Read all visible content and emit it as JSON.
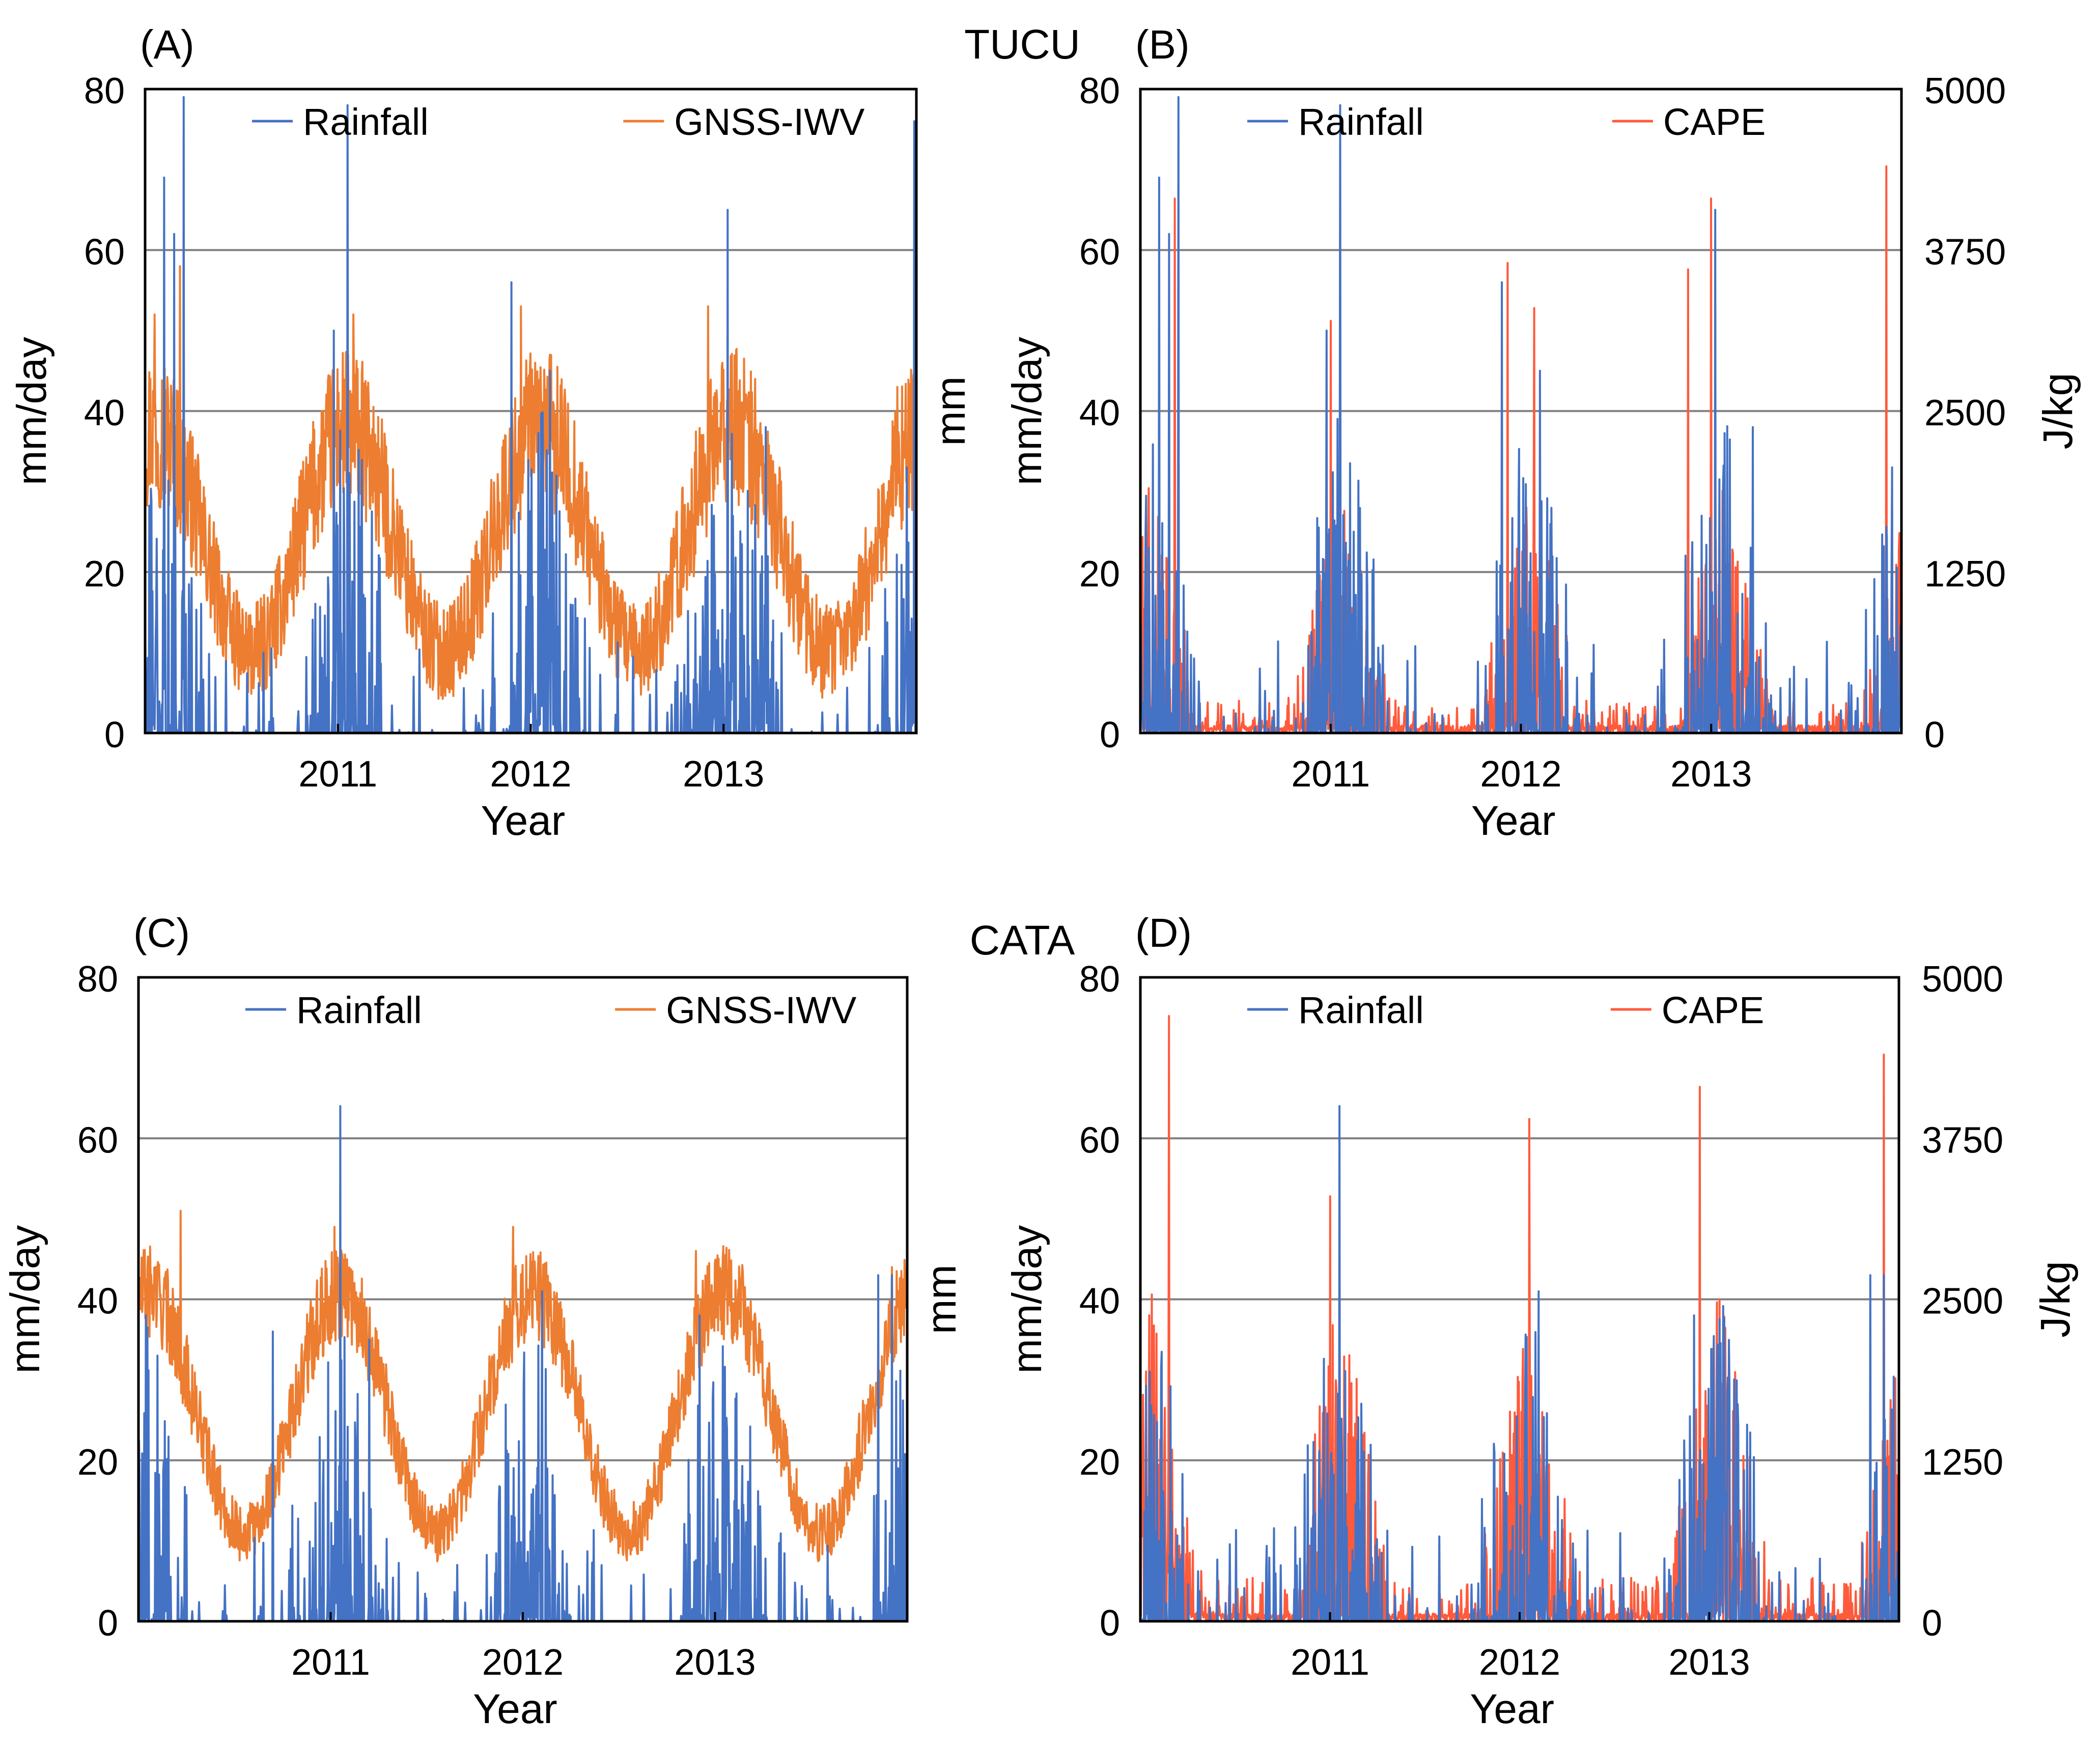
{
  "figure": {
    "station_top": "TUCU",
    "station_bottom": "CATA"
  },
  "colors": {
    "rainfall": "#4472C4",
    "iwv": "#ED7D31",
    "cape": "#FF5A3C",
    "grid": "#808080",
    "axis": "#000000"
  },
  "chart_data": [
    {
      "id": "A",
      "panel_label": "(A)",
      "station": "TUCU",
      "type": "line",
      "xlabel": "Year",
      "ylabel": "mm/day",
      "ylabel_right": "mm",
      "ylim": [
        0,
        80
      ],
      "yticks": [
        "0",
        "20",
        "40",
        "60",
        "80"
      ],
      "xlim": [
        2010.0,
        2014.0
      ],
      "xticks": [
        2011,
        2012,
        2013
      ],
      "xticklabels": [
        "2011",
        "2012",
        "2013"
      ],
      "grid_y": [
        20,
        40,
        60
      ],
      "legend": [
        "Rainfall",
        "GNSS-IWV"
      ],
      "series": [
        {
          "name": "Rainfall",
          "axis": "left",
          "kind": "rain",
          "peaks": [
            [
              2010.1,
              69
            ],
            [
              2010.15,
              62
            ],
            [
              2010.2,
              79
            ],
            [
              2010.98,
              50
            ],
            [
              2011.05,
              78
            ],
            [
              2011.9,
              56
            ],
            [
              2012.1,
              45
            ],
            [
              2012.95,
              27
            ],
            [
              2013.02,
              65
            ],
            [
              2013.22,
              38
            ],
            [
              2013.95,
              33
            ],
            [
              2013.99,
              76
            ]
          ]
        },
        {
          "name": "GNSS-IWV",
          "axis": "left",
          "kind": "iwv",
          "mean": 24,
          "amp": 14,
          "noise": 10,
          "peak": 2011.05,
          "peaks": [
            [
              2010.05,
              52
            ],
            [
              2010.18,
              58
            ],
            [
              2011.08,
              52
            ],
            [
              2011.95,
              53
            ],
            [
              2012.1,
              47
            ],
            [
              2012.92,
              53
            ],
            [
              2013.9,
              43
            ]
          ]
        }
      ]
    },
    {
      "id": "B",
      "panel_label": "(B)",
      "station": "TUCU",
      "type": "line",
      "xlabel": "Year",
      "ylabel": "mm/day",
      "ylabel_right": "J/kg",
      "ylim": [
        0,
        80
      ],
      "yticks": [
        "0",
        "20",
        "40",
        "60",
        "80"
      ],
      "y2lim": [
        0,
        5000
      ],
      "y2ticks": [
        "0",
        "1250",
        "2500",
        "3750",
        "5000"
      ],
      "xlim": [
        2010.0,
        2014.0
      ],
      "xticks": [
        2011,
        2012,
        2013
      ],
      "xticklabels": [
        "2011",
        "2012",
        "2013"
      ],
      "grid_y": [
        20,
        40,
        60
      ],
      "legend": [
        "Rainfall",
        "CAPE"
      ],
      "series": [
        {
          "name": "Rainfall",
          "axis": "left",
          "kind": "rain",
          "peaks": [
            [
              2010.1,
              69
            ],
            [
              2010.15,
              62
            ],
            [
              2010.2,
              79
            ],
            [
              2010.98,
              50
            ],
            [
              2011.05,
              78
            ],
            [
              2011.9,
              56
            ],
            [
              2012.1,
              45
            ],
            [
              2012.95,
              27
            ],
            [
              2013.02,
              65
            ],
            [
              2013.22,
              38
            ],
            [
              2013.95,
              33
            ]
          ]
        },
        {
          "name": "CAPE",
          "axis": "right",
          "kind": "cape",
          "level": 1700,
          "peaks": [
            [
              2010.18,
              4150
            ],
            [
              2011.0,
              3200
            ],
            [
              2011.93,
              3650
            ],
            [
              2012.07,
              3300
            ],
            [
              2012.88,
              3600
            ],
            [
              2013.0,
              4150
            ],
            [
              2013.92,
              4400
            ]
          ]
        }
      ]
    },
    {
      "id": "C",
      "panel_label": "(C)",
      "station": "CATA",
      "type": "line",
      "xlabel": "Year",
      "ylabel": "mm/day",
      "ylabel_right": "mm",
      "ylim": [
        0,
        80
      ],
      "yticks": [
        "0",
        "20",
        "40",
        "60",
        "80"
      ],
      "xlim": [
        2010.0,
        2014.0
      ],
      "xticks": [
        2011,
        2012,
        2013
      ],
      "xticklabels": [
        "2011",
        "2012",
        "2013"
      ],
      "grid_y": [
        20,
        40,
        60
      ],
      "legend": [
        "Rainfall",
        "GNSS-IWV"
      ],
      "series": [
        {
          "name": "Rainfall",
          "axis": "left",
          "kind": "rain",
          "peaks": [
            [
              2010.1,
              33
            ],
            [
              2010.7,
              36
            ],
            [
              2011.05,
              64
            ],
            [
              2011.2,
              35
            ],
            [
              2012.1,
              41
            ],
            [
              2012.92,
              38
            ],
            [
              2013.85,
              43
            ],
            [
              2013.92,
              43
            ]
          ]
        },
        {
          "name": "GNSS-IWV",
          "axis": "left",
          "kind": "iwv",
          "mean": 26,
          "amp": 15,
          "noise": 6,
          "peak": 2011.05,
          "peaks": [
            [
              2010.22,
              51
            ],
            [
              2011.02,
              49
            ],
            [
              2011.95,
              49
            ],
            [
              2012.9,
              46
            ],
            [
              2013.92,
              44
            ]
          ]
        }
      ]
    },
    {
      "id": "D",
      "panel_label": "(D)",
      "station": "CATA",
      "type": "line",
      "xlabel": "Year",
      "ylabel": "mm/day",
      "ylabel_right": "J/kg",
      "ylim": [
        0,
        80
      ],
      "yticks": [
        "0",
        "20",
        "40",
        "60",
        "80"
      ],
      "y2lim": [
        0,
        5000
      ],
      "y2ticks": [
        "0",
        "1250",
        "2500",
        "3750",
        "5000"
      ],
      "xlim": [
        2010.0,
        2014.0
      ],
      "xticks": [
        2011,
        2012,
        2013
      ],
      "xticklabels": [
        "2011",
        "2012",
        "2013"
      ],
      "grid_y": [
        20,
        40,
        60
      ],
      "legend": [
        "Rainfall",
        "CAPE"
      ],
      "series": [
        {
          "name": "Rainfall",
          "axis": "left",
          "kind": "rain",
          "peaks": [
            [
              2010.05,
              31
            ],
            [
              2011.05,
              64
            ],
            [
              2012.1,
              41
            ],
            [
              2012.92,
              38
            ],
            [
              2013.85,
              43
            ],
            [
              2013.92,
              43
            ]
          ]
        },
        {
          "name": "CAPE",
          "axis": "right",
          "kind": "cape",
          "level": 2300,
          "peaks": [
            [
              2010.15,
              4700
            ],
            [
              2011.0,
              3300
            ],
            [
              2012.05,
              3900
            ],
            [
              2012.95,
              4150
            ],
            [
              2013.92,
              4400
            ]
          ]
        }
      ]
    }
  ]
}
